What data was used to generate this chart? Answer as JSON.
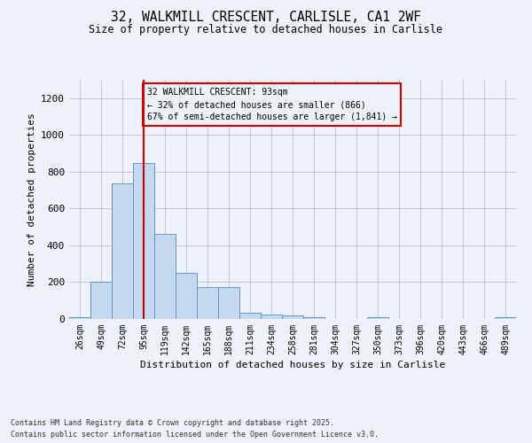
{
  "title_line1": "32, WALKMILL CRESCENT, CARLISLE, CA1 2WF",
  "title_line2": "Size of property relative to detached houses in Carlisle",
  "xlabel": "Distribution of detached houses by size in Carlisle",
  "ylabel": "Number of detached properties",
  "categories": [
    "26sqm",
    "49sqm",
    "72sqm",
    "95sqm",
    "119sqm",
    "142sqm",
    "165sqm",
    "188sqm",
    "211sqm",
    "234sqm",
    "258sqm",
    "281sqm",
    "304sqm",
    "327sqm",
    "350sqm",
    "373sqm",
    "396sqm",
    "420sqm",
    "443sqm",
    "466sqm",
    "489sqm"
  ],
  "values": [
    12,
    200,
    735,
    848,
    460,
    248,
    175,
    175,
    35,
    25,
    18,
    10,
    0,
    0,
    8,
    0,
    0,
    0,
    0,
    0,
    8
  ],
  "bar_color": "#c5d8f0",
  "bar_edge_color": "#5b9bd5",
  "grid_color": "#b8c4d4",
  "background_color": "#eef2f8",
  "annotation_box_color": "#cc0000",
  "property_line_color": "#cc0000",
  "property_size": 93,
  "annotation_line1": "32 WALKMILL CRESCENT: 93sqm",
  "annotation_line2": "← 32% of detached houses are smaller (866)",
  "annotation_line3": "67% of semi-detached houses are larger (1,841) →",
  "ylim": [
    0,
    1300
  ],
  "yticks": [
    0,
    200,
    400,
    600,
    800,
    1000,
    1200
  ],
  "footnote_line1": "Contains HM Land Registry data © Crown copyright and database right 2025.",
  "footnote_line2": "Contains public sector information licensed under the Open Government Licence v3.0."
}
